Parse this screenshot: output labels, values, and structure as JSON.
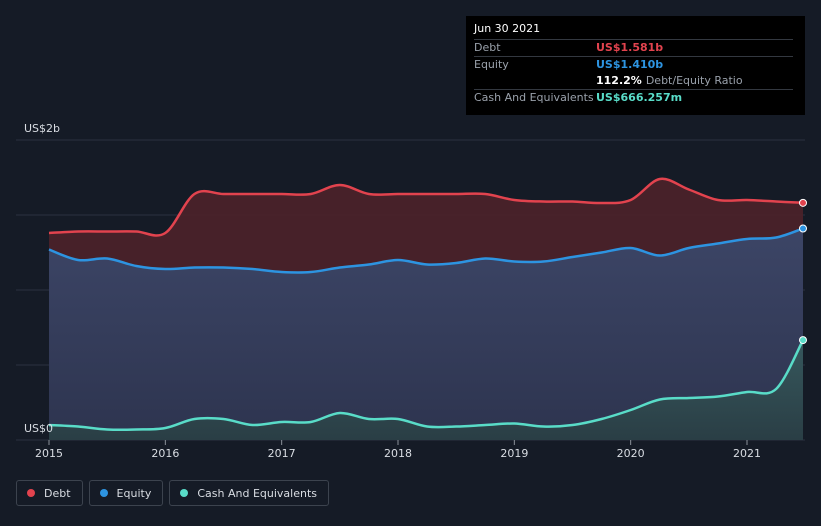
{
  "tooltip": {
    "date": "Jun 30 2021",
    "debt_label": "Debt",
    "debt_value": "US$1.581b",
    "equity_label": "Equity",
    "equity_value": "US$1.410b",
    "ratio_value": "112.2%",
    "ratio_label": "Debt/Equity Ratio",
    "cash_label": "Cash And Equivalents",
    "cash_value": "US$666.257m"
  },
  "legend": {
    "debt": "Debt",
    "equity": "Equity",
    "cash": "Cash And Equivalents"
  },
  "colors": {
    "debt": "#e2434e",
    "equity": "#2d94e1",
    "cash": "#59dcc8",
    "background": "#151b26"
  },
  "chart_data": {
    "type": "area",
    "title": "",
    "xlabel": "",
    "ylabel": "",
    "x_ticks": [
      "2015",
      "2016",
      "2017",
      "2018",
      "2019",
      "2020",
      "2021"
    ],
    "y_tick_labels": [
      "US$2b",
      "US$0"
    ],
    "ylim": [
      0,
      2.0
    ],
    "unit": "US$ billions",
    "x": [
      2015.0,
      2015.25,
      2015.5,
      2015.75,
      2016.0,
      2016.25,
      2016.5,
      2016.75,
      2017.0,
      2017.25,
      2017.5,
      2017.75,
      2018.0,
      2018.25,
      2018.5,
      2018.75,
      2019.0,
      2019.25,
      2019.5,
      2019.75,
      2020.0,
      2020.25,
      2020.5,
      2020.75,
      2021.0,
      2021.25,
      2021.5
    ],
    "series": [
      {
        "name": "Debt",
        "values": [
          1.38,
          1.39,
          1.39,
          1.39,
          1.38,
          1.64,
          1.64,
          1.64,
          1.64,
          1.64,
          1.7,
          1.64,
          1.64,
          1.64,
          1.64,
          1.64,
          1.6,
          1.59,
          1.59,
          1.58,
          1.6,
          1.74,
          1.67,
          1.6,
          1.6,
          1.59,
          1.581
        ]
      },
      {
        "name": "Equity",
        "values": [
          1.27,
          1.2,
          1.21,
          1.16,
          1.14,
          1.15,
          1.15,
          1.14,
          1.12,
          1.12,
          1.15,
          1.17,
          1.2,
          1.17,
          1.18,
          1.21,
          1.19,
          1.19,
          1.22,
          1.25,
          1.28,
          1.23,
          1.28,
          1.31,
          1.34,
          1.35,
          1.41
        ]
      },
      {
        "name": "Cash And Equivalents",
        "values": [
          0.1,
          0.09,
          0.07,
          0.07,
          0.08,
          0.14,
          0.14,
          0.1,
          0.12,
          0.12,
          0.18,
          0.14,
          0.14,
          0.09,
          0.09,
          0.1,
          0.11,
          0.09,
          0.1,
          0.14,
          0.2,
          0.27,
          0.28,
          0.29,
          0.32,
          0.34,
          0.666
        ]
      }
    ],
    "y_gridlines": [
      0,
      0.5,
      1.0,
      1.5,
      2.0
    ],
    "legend_position": "bottom-left"
  }
}
